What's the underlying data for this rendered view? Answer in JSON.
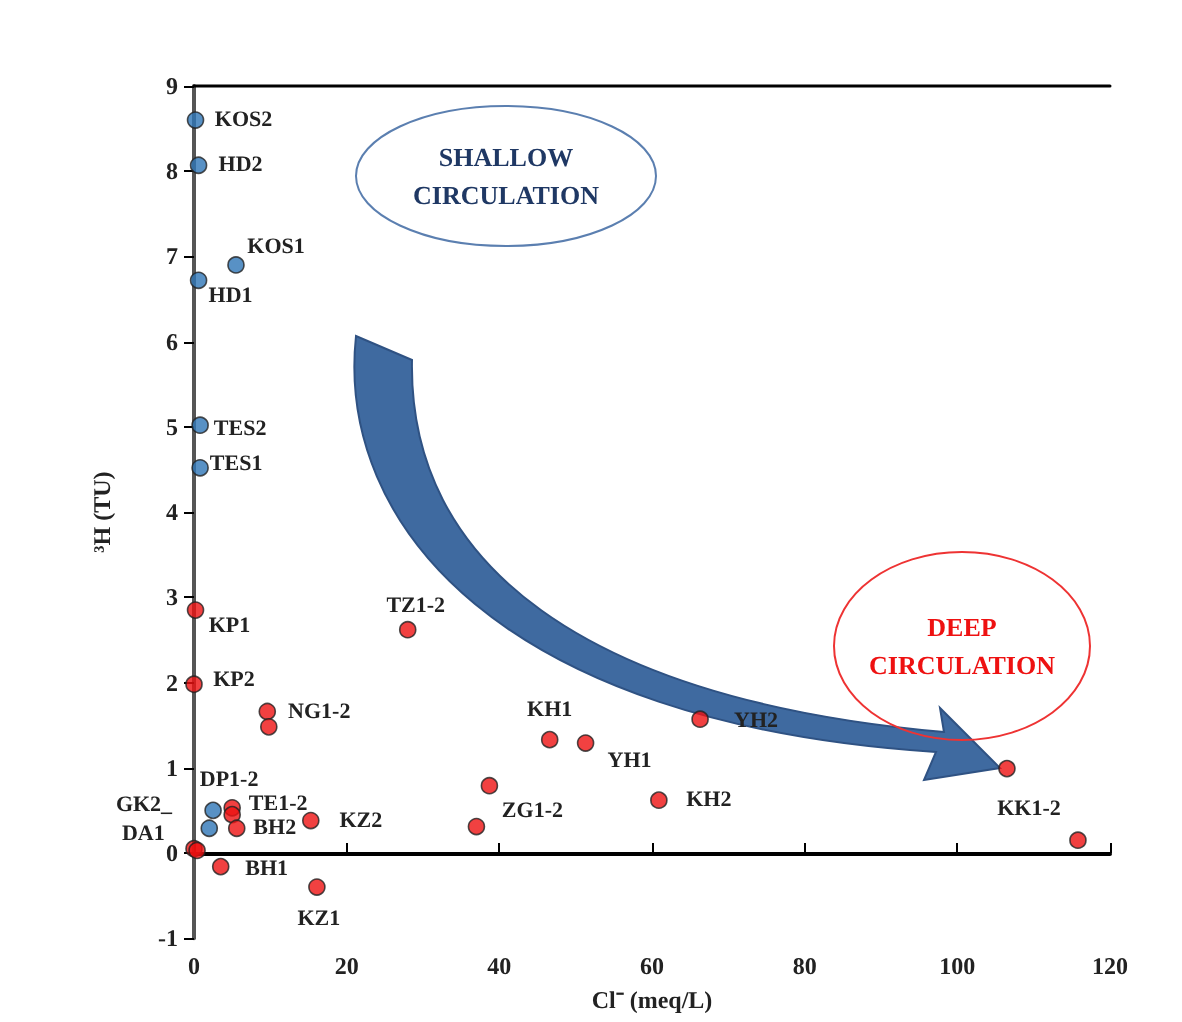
{
  "chart_data": {
    "type": "scatter",
    "xlabel": "Cl⁻ (meq/L)",
    "ylabel": "³H (TU)",
    "xlim": [
      0,
      120
    ],
    "xticks": [
      0,
      20,
      40,
      60,
      80,
      100,
      120
    ],
    "ylim": [
      -1,
      9
    ],
    "yticks": [
      -1,
      0,
      1,
      2,
      3,
      4,
      5,
      6,
      7,
      8,
      9
    ],
    "marker": "circle",
    "series": [
      {
        "color": "#2e75b6",
        "x": [
          0.2,
          0.6,
          5.5,
          0.6,
          0.8,
          0.8,
          2.5,
          2
        ],
        "values": [
          8.6,
          8.07,
          6.9,
          6.72,
          5.02,
          4.52,
          0.5,
          0.29
        ]
      },
      {
        "color": "#ee1111",
        "x": [
          0.2,
          0,
          9.6,
          9.8,
          28,
          5,
          5,
          5.6,
          15.3,
          0,
          0.4,
          3.5,
          16.1,
          38.7,
          37,
          46.6,
          51.3,
          60.9,
          66.3,
          106.5,
          115.8
        ],
        "values": [
          2.85,
          1.98,
          1.66,
          1.48,
          2.62,
          0.53,
          0.45,
          0.29,
          0.38,
          0.05,
          0.03,
          -0.16,
          -0.4,
          0.79,
          0.31,
          1.33,
          1.29,
          0.62,
          1.57,
          0.99,
          0.15
        ]
      }
    ],
    "annotations": [
      {
        "text": "KOS2",
        "x": 0.2,
        "y": 8.6
      },
      {
        "text": "HD2",
        "x": 0.6,
        "y": 8.07
      },
      {
        "text": "KOS1",
        "x": 5.5,
        "y": 6.9
      },
      {
        "text": "HD1",
        "x": 0.6,
        "y": 6.72
      },
      {
        "text": "TES2",
        "x": 0.8,
        "y": 5.02
      },
      {
        "text": "TES1",
        "x": 0.8,
        "y": 4.52
      },
      {
        "text": "KP1",
        "x": 0.2,
        "y": 2.85
      },
      {
        "text": "KP2",
        "x": 0,
        "y": 1.98
      },
      {
        "text": "NG1-2",
        "x": 9.6,
        "y": 1.66
      },
      {
        "text": "TZ1-2",
        "x": 28,
        "y": 2.62
      },
      {
        "text": "DP1-2",
        "x": 2.5,
        "y": 0.5
      },
      {
        "text": "GK2_",
        "x": 0,
        "y": 0.05
      },
      {
        "text": "DA1",
        "x": 2,
        "y": 0.29
      },
      {
        "text": "TE1-2",
        "x": 5,
        "y": 0.53
      },
      {
        "text": "BH2",
        "x": 5.6,
        "y": 0.29
      },
      {
        "text": "KZ2",
        "x": 15.3,
        "y": 0.38
      },
      {
        "text": "BH1",
        "x": 3.5,
        "y": -0.16
      },
      {
        "text": "KZ1",
        "x": 16.1,
        "y": -0.4
      },
      {
        "text": "ZG1-2",
        "x": 37,
        "y": 0.31
      },
      {
        "text": "KH1",
        "x": 46.6,
        "y": 1.33
      },
      {
        "text": "YH1",
        "x": 51.3,
        "y": 1.29
      },
      {
        "text": "KH2",
        "x": 60.9,
        "y": 0.62
      },
      {
        "text": "YH2",
        "x": 66.3,
        "y": 1.57
      },
      {
        "text": "KK1-2",
        "x": 106.5,
        "y": 0.99
      },
      "SHALLOW\nCIRCULATION",
      "DEEP\nCIRCULATION"
    ]
  }
}
